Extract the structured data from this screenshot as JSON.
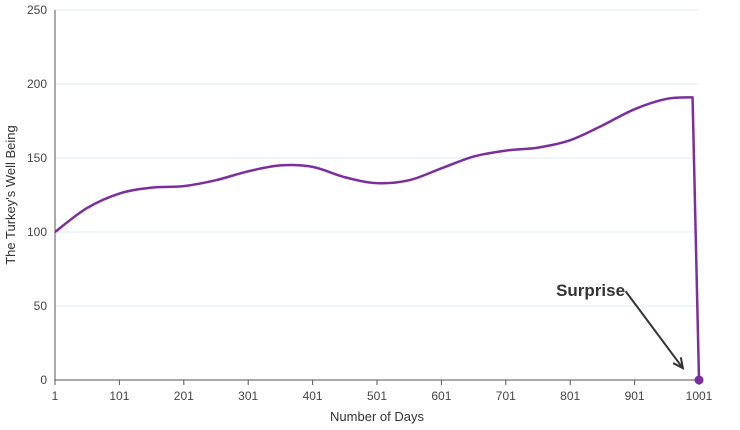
{
  "chart_data": {
    "type": "line",
    "title": "",
    "xlabel": "Number of Days",
    "ylabel": "The Turkey's Well Being",
    "xlim": [
      1,
      1001
    ],
    "ylim": [
      0,
      250
    ],
    "grid": true,
    "x_ticks": [
      1,
      101,
      201,
      301,
      401,
      501,
      601,
      701,
      801,
      901,
      1001
    ],
    "y_ticks": [
      0,
      50,
      100,
      150,
      200,
      250
    ],
    "series": [
      {
        "color": "#7b2f9e",
        "x": [
          1,
          50,
          101,
          151,
          201,
          251,
          301,
          351,
          401,
          451,
          501,
          551,
          601,
          651,
          701,
          751,
          801,
          851,
          901,
          951,
          991,
          1001
        ],
        "y": [
          100,
          116,
          126,
          130,
          131,
          135,
          141,
          145,
          144,
          137,
          133,
          135,
          143,
          151,
          155,
          157,
          162,
          172,
          183,
          190,
          191,
          0
        ]
      }
    ],
    "marker": {
      "x": 1001,
      "y": 0,
      "color": "#7b2f9e"
    },
    "annotation": {
      "text": "Surprise",
      "arrow_from": {
        "x": 887,
        "y": 60
      },
      "arrow_to": {
        "x": 976,
        "y": 8
      },
      "color": "#333333"
    }
  }
}
